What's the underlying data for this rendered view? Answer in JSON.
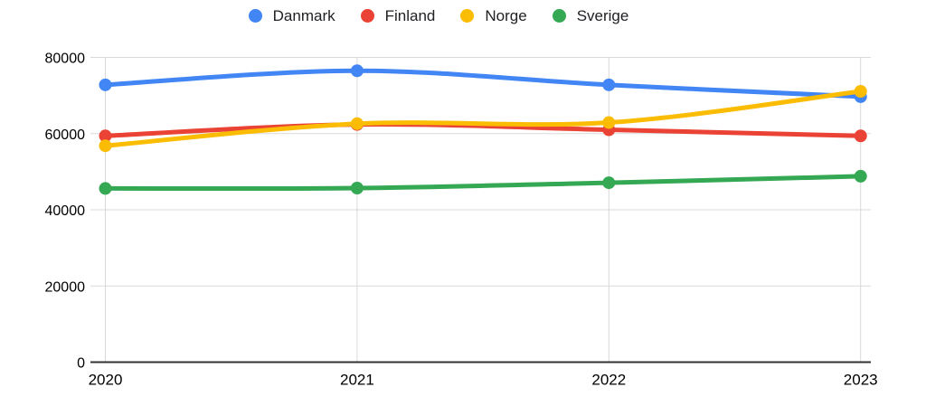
{
  "chart_data": {
    "type": "line",
    "title": "",
    "xlabel": "",
    "ylabel": "",
    "x": [
      "2020",
      "2021",
      "2022",
      "2023"
    ],
    "series": [
      {
        "name": "Danmark",
        "color": "#4285F4",
        "values": [
          72800,
          76500,
          72800,
          69700
        ]
      },
      {
        "name": "Finland",
        "color": "#EA4335",
        "values": [
          59400,
          62400,
          61000,
          59400
        ]
      },
      {
        "name": "Norge",
        "color": "#FBBC04",
        "values": [
          56800,
          62600,
          62900,
          71100
        ]
      },
      {
        "name": "Sverige",
        "color": "#34A853",
        "values": [
          45600,
          45700,
          47100,
          48800
        ]
      }
    ],
    "ylim": [
      0,
      80000
    ],
    "yticks": [
      0,
      20000,
      40000,
      60000,
      80000
    ],
    "ytick_labels": [
      "0",
      "20000",
      "40000",
      "60000",
      "80000"
    ],
    "grid": true,
    "line_style": "smooth",
    "point_markers": true,
    "legend_position": "top"
  },
  "colors": {
    "background": "#ffffff",
    "gridline": "#d9d9d9",
    "axis": "#333333",
    "tick_text": "#000000",
    "legend_text": "#202124"
  }
}
